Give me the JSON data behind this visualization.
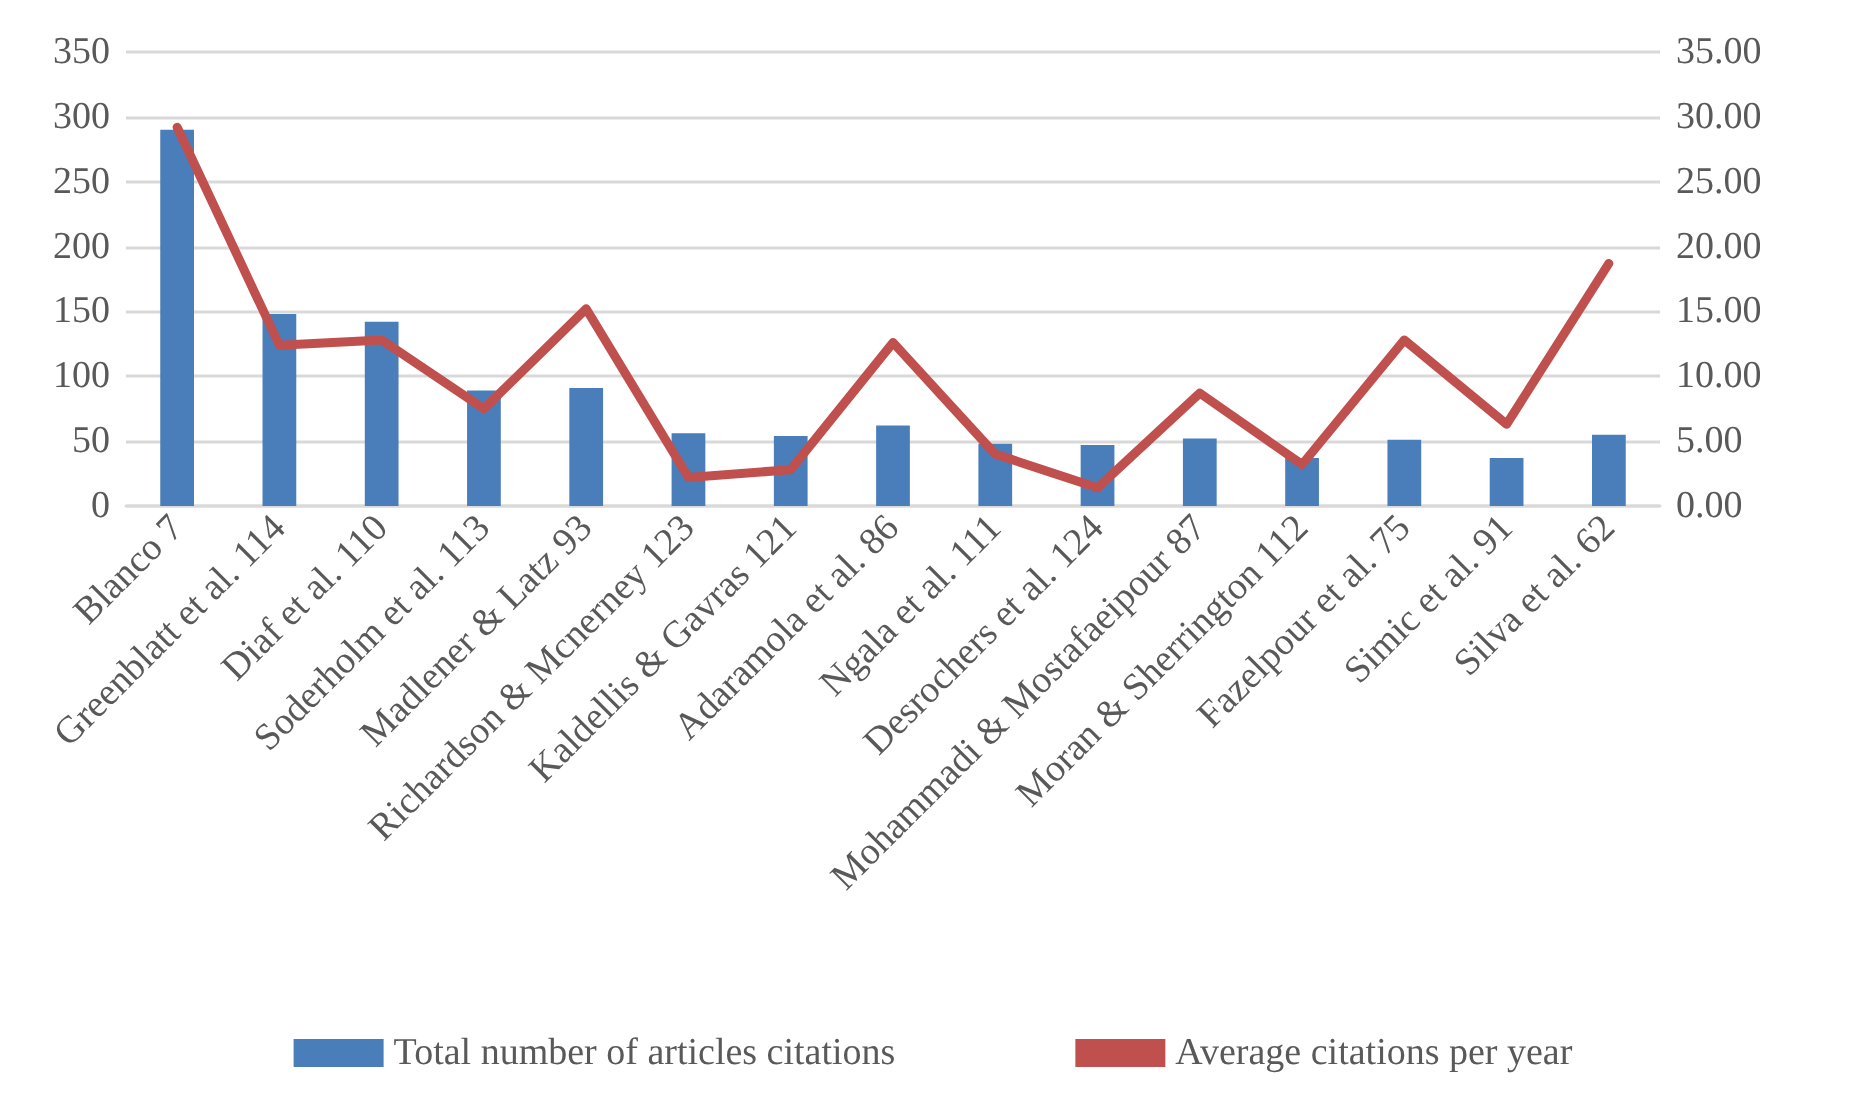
{
  "chart_data": {
    "type": "bar",
    "categories": [
      "Blanco 7",
      "Greenblatt et al. 114",
      "Diaf et al. 110",
      "Soderholm et al. 113",
      "Madlener & Latz 93",
      "Richardson & Mcnerney 123",
      "Kaldellis & Gavras 121",
      "Adaramola et al. 86",
      "Ngala et al. 111",
      "Desrochers et al. 124",
      "Mohammadi & Mostafaeipour 87",
      "Moran & Sherrington 112",
      "Fazelpour et al. 75",
      "Simic et al. 91",
      "Silva et al. 62"
    ],
    "series": [
      {
        "name": "Total number of articles citations",
        "color": "#4a7ebb",
        "values": [
          290,
          148,
          142,
          89,
          91,
          56,
          54,
          62,
          48,
          47,
          52,
          37,
          51,
          37,
          55
        ]
      },
      {
        "name": "Average citations per year",
        "type": "line",
        "axis": "y2",
        "color": "#c0504d",
        "values": [
          29.2,
          12.4,
          12.8,
          7.5,
          15.2,
          2.2,
          2.8,
          12.6,
          4.0,
          1.4,
          8.7,
          3.2,
          12.8,
          6.3,
          18.7
        ]
      }
    ],
    "ylim": [
      0,
      350
    ],
    "yticks": [
      0,
      50,
      100,
      150,
      200,
      250,
      300,
      350
    ],
    "y2lim": [
      0,
      35
    ],
    "y2ticks": [
      {
        "value": 0,
        "label": "0.00"
      },
      {
        "value": 5,
        "label": "5.00"
      },
      {
        "value": 10,
        "label": "10.00"
      },
      {
        "value": 15,
        "label": "15.00"
      },
      {
        "value": 20,
        "label": "20.00"
      },
      {
        "value": 25,
        "label": "25.00"
      },
      {
        "value": 30,
        "label": "30.00"
      },
      {
        "value": 35,
        "label": "35.00"
      }
    ],
    "grid": "y",
    "legend": "bottom",
    "marker": "none",
    "line_style": "solid"
  }
}
